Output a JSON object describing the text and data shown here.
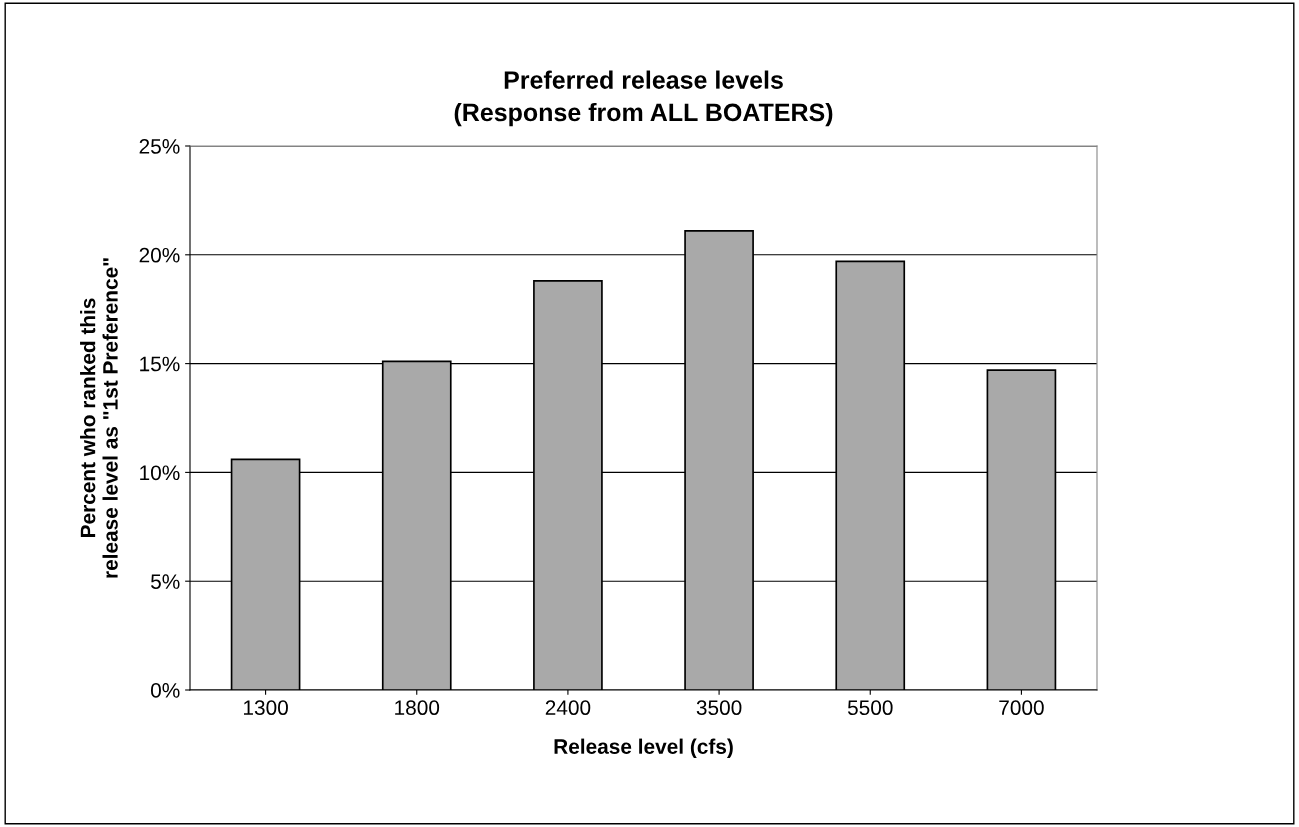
{
  "chart_data": {
    "type": "bar",
    "title": "Preferred release levels\n(Response from ALL BOATERS)",
    "xlabel": "Release level (cfs)",
    "ylabel": "Percent who ranked this\nrelease level as \"1st Preference\"",
    "categories": [
      "1300",
      "1800",
      "2400",
      "3500",
      "5500",
      "7000"
    ],
    "values": [
      10.6,
      15.1,
      18.8,
      21.1,
      19.7,
      14.7
    ],
    "color": "#a9a9a9",
    "ylim": [
      0,
      25
    ],
    "yticks": [
      {
        "value": 0,
        "label": "0%"
      },
      {
        "value": 5,
        "label": "5%"
      },
      {
        "value": 10,
        "label": "10%"
      },
      {
        "value": 15,
        "label": "15%"
      },
      {
        "value": 20,
        "label": "20%"
      },
      {
        "value": 25,
        "label": "25%"
      }
    ],
    "grid": "y",
    "legend": false
  }
}
